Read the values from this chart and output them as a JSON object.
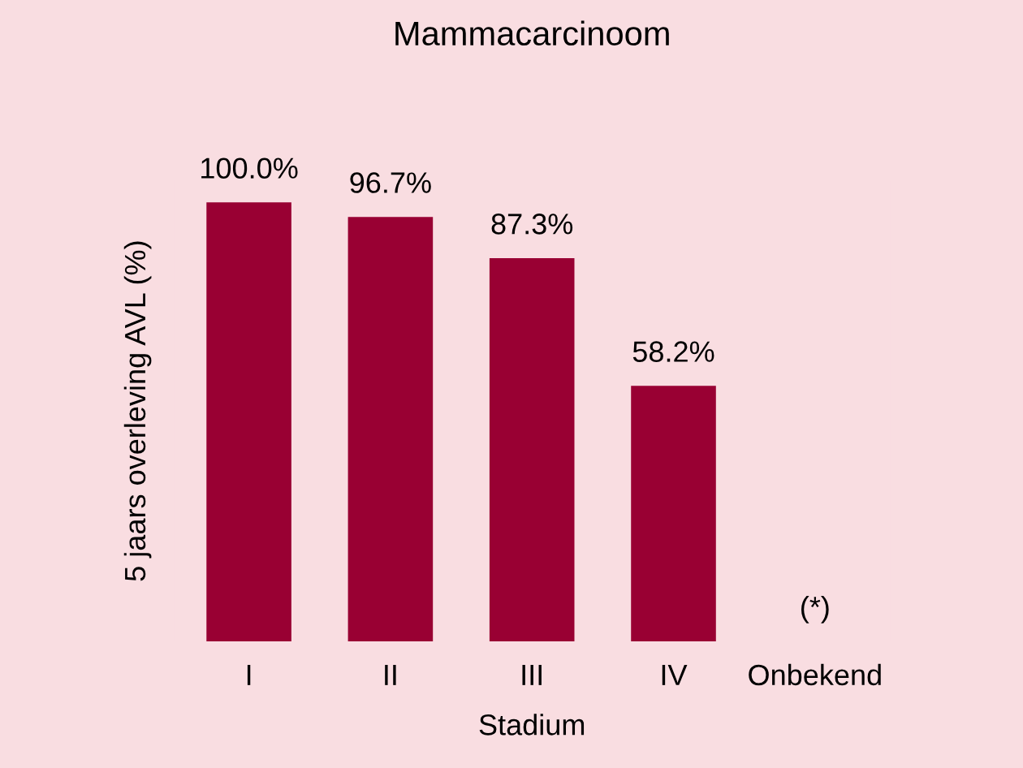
{
  "chart_data": {
    "type": "bar",
    "title": "Mammacarcinoom",
    "xlabel": "Stadium",
    "ylabel": "5 jaars overleving AVL (%)",
    "categories": [
      "I",
      "II",
      "III",
      "IV",
      "Onbekend"
    ],
    "values": [
      100.0,
      96.7,
      87.3,
      58.2,
      null
    ],
    "value_labels": [
      "100.0%",
      "96.7%",
      "87.3%",
      "58.2%",
      "(*)"
    ],
    "color": "#990033",
    "grid": false,
    "legend": false
  }
}
